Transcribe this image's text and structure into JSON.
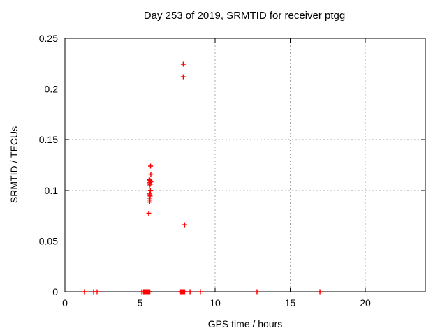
{
  "window": {
    "background": "#ffffff"
  },
  "chart_data": {
    "type": "scatter",
    "title": "Day 253 of 2019, SRMTID for receiver ptgg",
    "xlabel": "GPS time / hours",
    "ylabel": "SRMTID / TECUs",
    "xlim": [
      0,
      24
    ],
    "ylim": [
      0,
      0.25
    ],
    "xticks": {
      "values": [
        0,
        5,
        10,
        15,
        20
      ],
      "labels": [
        "0",
        "5",
        "10",
        "15",
        "20"
      ]
    },
    "yticks": {
      "values": [
        0,
        0.05,
        0.1,
        0.15,
        0.2,
        0.25
      ],
      "labels": [
        "0",
        "0.05",
        "0.1",
        "0.15",
        "0.2",
        "0.25"
      ]
    },
    "grid": {
      "show": true,
      "style": "dashed",
      "color": "#a8a8a8"
    },
    "border_color": "#000000",
    "legend": "none",
    "series": [
      {
        "name": "SRMTID",
        "marker": "plus",
        "color": "#ff0000",
        "points": [
          [
            5.7,
            0.124
          ],
          [
            5.72,
            0.116
          ],
          [
            5.61,
            0.1105
          ],
          [
            5.66,
            0.11
          ],
          [
            5.7,
            0.109
          ],
          [
            5.72,
            0.1085
          ],
          [
            5.63,
            0.1075
          ],
          [
            5.67,
            0.106
          ],
          [
            5.62,
            0.1045
          ],
          [
            5.69,
            0.1
          ],
          [
            5.63,
            0.0965
          ],
          [
            5.67,
            0.0945
          ],
          [
            5.61,
            0.0925
          ],
          [
            5.66,
            0.0905
          ],
          [
            5.64,
            0.0885
          ],
          [
            5.58,
            0.0775
          ],
          [
            7.97,
            0.066
          ],
          [
            7.88,
            0.2245
          ],
          [
            7.88,
            0.212
          ],
          [
            1.3,
            0
          ],
          [
            1.91,
            0
          ],
          [
            2.09,
            0
          ],
          [
            2.19,
            0
          ],
          [
            5.12,
            0
          ],
          [
            5.23,
            0
          ],
          [
            5.26,
            0
          ],
          [
            5.29,
            0
          ],
          [
            5.32,
            0
          ],
          [
            5.35,
            0
          ],
          [
            5.38,
            0
          ],
          [
            5.41,
            0
          ],
          [
            5.44,
            0
          ],
          [
            5.47,
            0
          ],
          [
            5.5,
            0
          ],
          [
            5.53,
            0
          ],
          [
            5.56,
            0
          ],
          [
            5.59,
            0
          ],
          [
            5.62,
            0
          ],
          [
            5.65,
            0
          ],
          [
            7.7,
            0
          ],
          [
            7.73,
            0
          ],
          [
            7.76,
            0
          ],
          [
            7.79,
            0
          ],
          [
            7.82,
            0
          ],
          [
            7.85,
            0
          ],
          [
            7.88,
            0
          ],
          [
            7.91,
            0
          ],
          [
            7.94,
            0
          ],
          [
            7.97,
            0
          ],
          [
            8.33,
            0
          ],
          [
            9.02,
            0
          ],
          [
            12.79,
            0
          ],
          [
            16.98,
            0
          ]
        ]
      }
    ]
  }
}
